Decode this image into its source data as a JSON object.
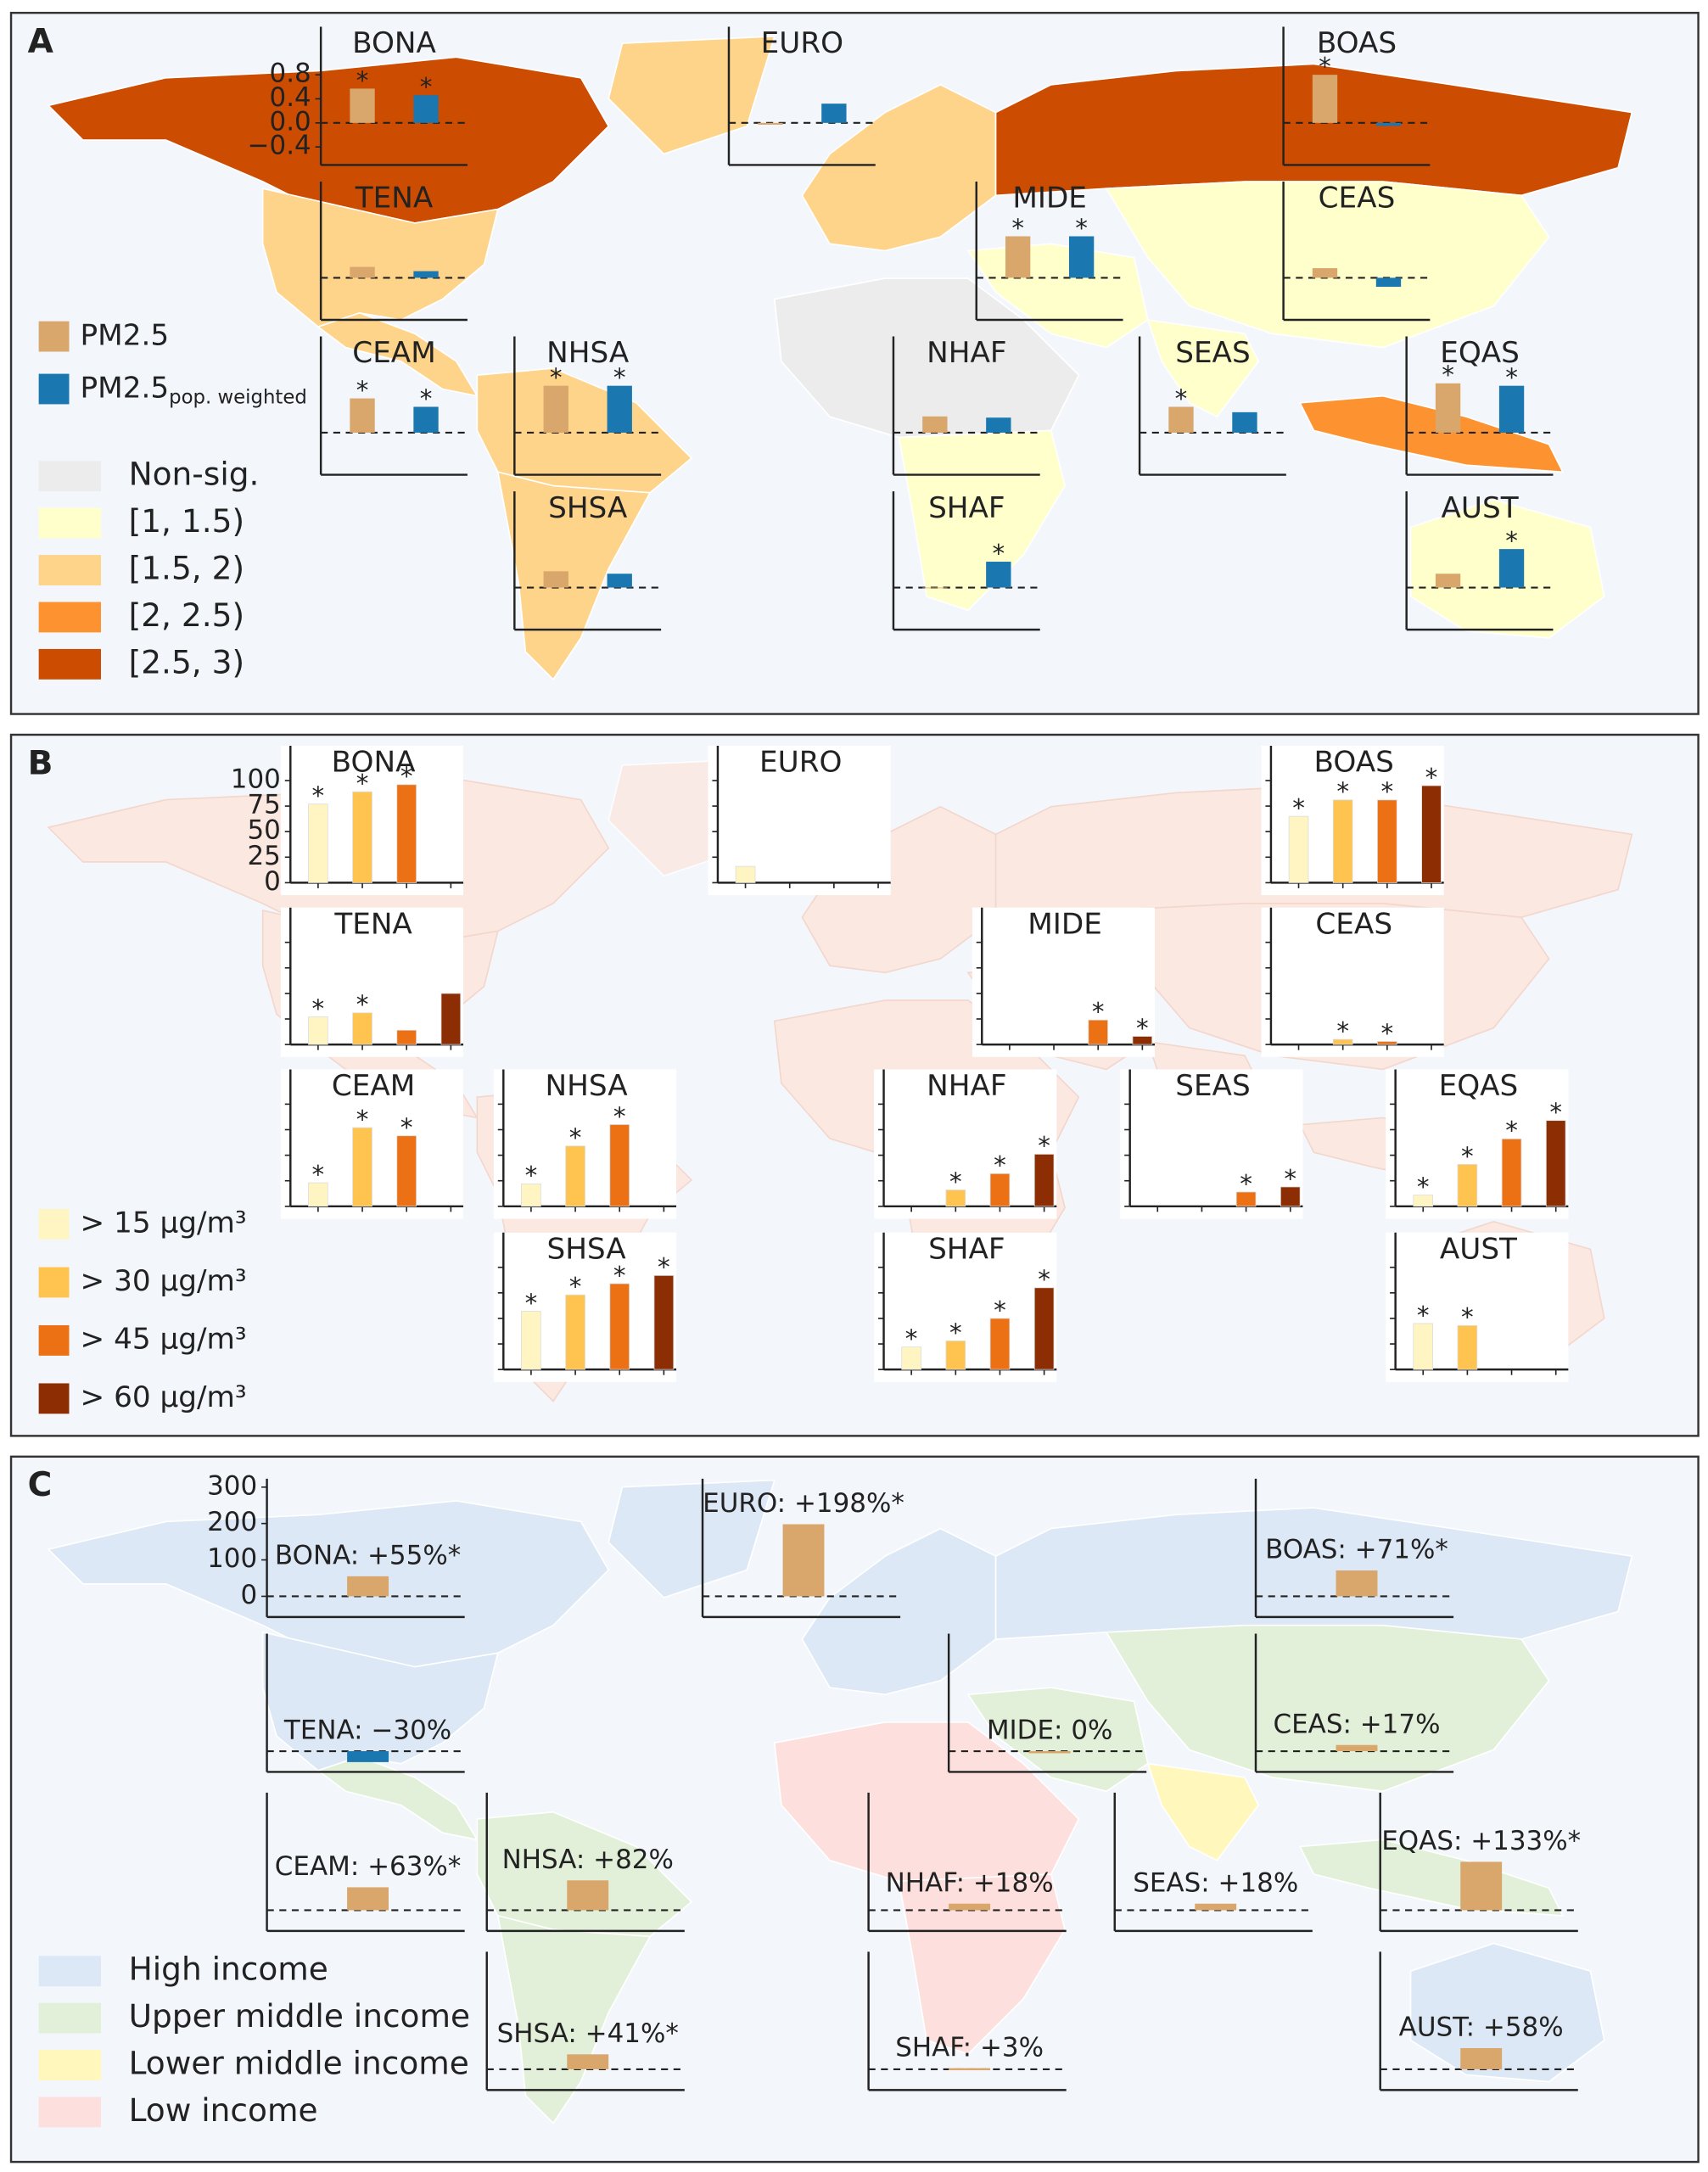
{
  "chart_data": [
    {
      "type": "bar",
      "panel": "A",
      "sig_marker": "*",
      "categories": [
        "BONA",
        "EURO",
        "BOAS",
        "TENA",
        "MIDE",
        "CEAS",
        "CEAM",
        "NHSA",
        "NHAF",
        "SEAS",
        "EQAS",
        "SHSA",
        "SHAF",
        "AUST"
      ],
      "ylim": [
        -0.7,
        1.6
      ],
      "yticks": [
        0.8,
        0.4,
        {
          "value": 0,
          "label": "0.0"
        },
        {
          "value": -0.4,
          "label": "−0.4"
        }
      ],
      "series": [
        {
          "name": "PM2.5",
          "color": "#d9a66b",
          "values": [
            0.57,
            -0.03,
            0.8,
            0.18,
            0.69,
            0.16,
            0.57,
            0.78,
            0.27,
            0.43,
            0.82,
            0.27,
            0,
            0.23
          ],
          "significant": [
            true,
            false,
            true,
            false,
            true,
            false,
            true,
            true,
            false,
            true,
            true,
            false,
            false,
            false
          ]
        },
        {
          "name": "PM2.5",
          "subscript": "pop. weighted",
          "color": "#1a77b0",
          "values": [
            0.46,
            0.32,
            -0.05,
            0.11,
            0.69,
            -0.15,
            0.43,
            0.78,
            0.25,
            0.34,
            0.78,
            0.23,
            0.43,
            0.64
          ],
          "significant": [
            true,
            false,
            false,
            false,
            true,
            false,
            true,
            true,
            false,
            false,
            true,
            false,
            true,
            true
          ]
        }
      ],
      "map_colors": [
        "#cc4c02",
        "#fed38a",
        "#cc4c02",
        "#fed38a",
        "#ffffcc",
        "#ffffcc",
        "#fed38a",
        "#fed38a",
        "#ececec",
        "#ffffcc",
        "#fc9330",
        "#fed38a",
        "#ffffcc",
        "#ffffcc"
      ],
      "map_legend": [
        {
          "label": "Non-sig.",
          "color": "#ececec"
        },
        {
          "label": "[1, 1.5)",
          "color": "#ffffcc"
        },
        {
          "label": "[1.5, 2)",
          "color": "#fed38a"
        },
        {
          "label": "[2, 2.5)",
          "color": "#fc9330"
        },
        {
          "label": "[2.5, 3)",
          "color": "#cc4c02"
        }
      ]
    },
    {
      "type": "bar",
      "panel": "B",
      "sig_marker": "*",
      "categories": [
        "BONA",
        "EURO",
        "BOAS",
        "TENA",
        "MIDE",
        "CEAS",
        "CEAM",
        "NHSA",
        "NHAF",
        "SEAS",
        "EQAS",
        "SHSA",
        "SHAF",
        "AUST"
      ],
      "ylim": [
        0,
        134
      ],
      "yticks": [
        100,
        75,
        50,
        25,
        0
      ],
      "series": [
        {
          "name": "> 15 µg/m³",
          "color": "#fff5c2",
          "values": [
            77,
            16,
            65,
            27,
            null,
            null,
            23,
            22,
            null,
            null,
            11,
            57,
            22,
            45
          ],
          "significant": [
            true,
            false,
            true,
            true,
            false,
            false,
            true,
            true,
            false,
            false,
            true,
            true,
            true,
            true
          ]
        },
        {
          "name": "> 30 µg/m³",
          "color": "#fec44f",
          "values": [
            89,
            null,
            81,
            31,
            null,
            5,
            77,
            59,
            16,
            null,
            41,
            73,
            28,
            43
          ],
          "significant": [
            true,
            false,
            true,
            true,
            false,
            true,
            true,
            true,
            true,
            false,
            true,
            true,
            true,
            true
          ]
        },
        {
          "name": "> 45 µg/m³",
          "color": "#ec7014",
          "values": [
            96,
            null,
            81,
            14,
            24,
            3,
            69,
            80,
            32,
            14,
            66,
            84,
            50,
            null
          ],
          "significant": [
            true,
            false,
            true,
            false,
            true,
            true,
            true,
            true,
            true,
            true,
            true,
            true,
            true,
            false
          ]
        },
        {
          "name": "> 60 µg/m³",
          "color": "#8c2d04",
          "values": [
            null,
            null,
            95,
            50,
            8,
            null,
            null,
            null,
            51,
            19,
            84,
            92,
            80,
            null
          ],
          "significant": [
            false,
            false,
            true,
            false,
            true,
            false,
            false,
            false,
            true,
            true,
            true,
            true,
            true,
            false
          ]
        }
      ],
      "map_color": "#fbe8e1"
    },
    {
      "type": "bar",
      "panel": "C",
      "categories": [
        "BONA",
        "EURO",
        "BOAS",
        "TENA",
        "MIDE",
        "CEAS",
        "CEAM",
        "NHSA",
        "NHAF",
        "SEAS",
        "EQAS",
        "SHSA",
        "SHAF",
        "AUST"
      ],
      "ylim": [
        -57,
        323
      ],
      "yticks": [
        300,
        200,
        100,
        0
      ],
      "values": [
        55,
        198,
        71,
        -30,
        0,
        17,
        63,
        82,
        18,
        18,
        133,
        41,
        3,
        58
      ],
      "value_labels": [
        "BONA: +55%*",
        "EURO: +198%*",
        "BOAS: +71%*",
        "TENA: −30%",
        "MIDE: 0%",
        "CEAS: +17%",
        "CEAM: +63%*",
        "NHSA: +82%",
        "NHAF: +18%",
        "SEAS: +18%",
        "EQAS: +133%*",
        "SHSA: +41%*",
        "SHAF: +3%",
        "AUST: +58%"
      ],
      "colors": [
        "#d9a66b",
        "#d9a66b",
        "#d9a66b",
        "#1a77b0",
        "#d9a66b",
        "#d9a66b",
        "#d9a66b",
        "#d9a66b",
        "#d9a66b",
        "#d9a66b",
        "#d9a66b",
        "#d9a66b",
        "#d9a66b",
        "#d9a66b"
      ],
      "map_colors": [
        "#dce8f5",
        "#dce8f5",
        "#dce8f5",
        "#dce8f5",
        "#e2f0d9",
        "#e2f0d9",
        "#e2f0d9",
        "#e2f0d9",
        "#fde0dd",
        "#fff7bc",
        "#e2f0d9",
        "#e2f0d9",
        "#fde0dd",
        "#dce8f5"
      ],
      "map_legend": [
        {
          "label": "High income",
          "color": "#dce8f5"
        },
        {
          "label": "Upper middle income",
          "color": "#e2f0d9"
        },
        {
          "label": "Lower middle income",
          "color": "#fff7bc"
        },
        {
          "label": "Low income",
          "color": "#fde0dd"
        }
      ]
    }
  ]
}
